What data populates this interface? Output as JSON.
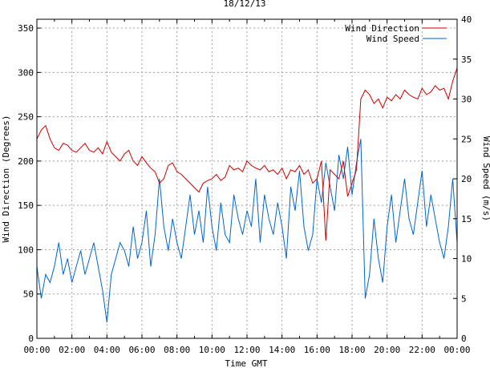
{
  "chart_data": {
    "type": "line",
    "title": "18/12/13",
    "xlabel": "Time GMT",
    "ylabel_left": "Wind Direction (Degrees)",
    "ylabel_right": "Wind Speed (m/s)",
    "grid": true,
    "legend_position": "top-right",
    "x_ticks": [
      "00:00",
      "02:00",
      "04:00",
      "06:00",
      "08:00",
      "10:00",
      "12:00",
      "14:00",
      "16:00",
      "18:00",
      "20:00",
      "22:00",
      "00:00"
    ],
    "xlim_hours": [
      0,
      24
    ],
    "y_left_ticks": [
      0,
      50,
      100,
      150,
      200,
      250,
      300,
      350
    ],
    "ylim_left": [
      0,
      360
    ],
    "y_right_ticks": [
      0,
      5,
      10,
      15,
      20,
      25,
      30,
      35,
      40
    ],
    "ylim_right": [
      0,
      40
    ],
    "series": [
      {
        "name": "Wind Direction",
        "axis": "left",
        "color": "#cc0000",
        "x": [
          0,
          0.25,
          0.5,
          0.75,
          1,
          1.25,
          1.5,
          1.75,
          2,
          2.25,
          2.5,
          2.75,
          3,
          3.25,
          3.5,
          3.75,
          4,
          4.25,
          4.5,
          4.75,
          5,
          5.25,
          5.5,
          5.75,
          6,
          6.25,
          6.5,
          6.75,
          7,
          7.25,
          7.5,
          7.75,
          8,
          8.25,
          8.5,
          8.75,
          9,
          9.25,
          9.5,
          9.75,
          10,
          10.25,
          10.5,
          10.75,
          11,
          11.25,
          11.5,
          11.75,
          12,
          12.25,
          12.5,
          12.75,
          13,
          13.25,
          13.5,
          13.75,
          14,
          14.25,
          14.5,
          14.75,
          15,
          15.25,
          15.5,
          15.75,
          16,
          16.25,
          16.5,
          16.75,
          17,
          17.25,
          17.5,
          17.75,
          18,
          18.25,
          18.5,
          18.75,
          19,
          19.25,
          19.5,
          19.75,
          20,
          20.25,
          20.5,
          20.75,
          21,
          21.25,
          21.5,
          21.75,
          22,
          22.25,
          22.5,
          22.75,
          23,
          23.25,
          23.5,
          23.75,
          24
        ],
        "values": [
          225,
          235,
          240,
          225,
          215,
          212,
          220,
          218,
          212,
          210,
          215,
          220,
          212,
          210,
          215,
          208,
          222,
          210,
          205,
          200,
          208,
          212,
          200,
          195,
          205,
          198,
          192,
          188,
          175,
          180,
          195,
          198,
          188,
          185,
          180,
          175,
          170,
          165,
          175,
          178,
          180,
          185,
          178,
          182,
          195,
          190,
          192,
          188,
          200,
          195,
          192,
          190,
          195,
          188,
          190,
          185,
          192,
          180,
          190,
          188,
          195,
          185,
          190,
          175,
          180,
          200,
          110,
          190,
          185,
          180,
          200,
          160,
          175,
          190,
          270,
          280,
          275,
          265,
          270,
          260,
          272,
          268,
          275,
          270,
          280,
          275,
          272,
          270,
          282,
          275,
          278,
          285,
          280,
          282,
          270,
          290,
          305
        ]
      },
      {
        "name": "Wind Speed",
        "axis": "right",
        "color": "#0066cc",
        "x": [
          0,
          0.25,
          0.5,
          0.75,
          1,
          1.25,
          1.5,
          1.75,
          2,
          2.25,
          2.5,
          2.75,
          3,
          3.25,
          3.5,
          3.75,
          4,
          4.25,
          4.5,
          4.75,
          5,
          5.25,
          5.5,
          5.75,
          6,
          6.25,
          6.5,
          6.75,
          7,
          7.25,
          7.5,
          7.75,
          8,
          8.25,
          8.5,
          8.75,
          9,
          9.25,
          9.5,
          9.75,
          10,
          10.25,
          10.5,
          10.75,
          11,
          11.25,
          11.5,
          11.75,
          12,
          12.25,
          12.5,
          12.75,
          13,
          13.25,
          13.5,
          13.75,
          14,
          14.25,
          14.5,
          14.75,
          15,
          15.25,
          15.5,
          15.75,
          16,
          16.25,
          16.5,
          16.75,
          17,
          17.25,
          17.5,
          17.75,
          18,
          18.25,
          18.5,
          18.75,
          19,
          19.25,
          19.5,
          19.75,
          20,
          20.25,
          20.5,
          20.75,
          21,
          21.25,
          21.5,
          21.75,
          22,
          22.25,
          22.5,
          22.75,
          23,
          23.25,
          23.5,
          23.75,
          24
        ],
        "values": [
          9,
          5,
          8,
          7,
          9,
          12,
          8,
          10,
          7,
          9,
          11,
          8,
          10,
          12,
          9,
          6,
          2,
          8,
          10,
          12,
          11,
          9,
          14,
          10,
          12,
          16,
          9,
          13,
          20,
          14,
          11,
          15,
          12,
          10,
          14,
          18,
          13,
          16,
          12,
          19,
          14,
          11,
          17,
          13,
          12,
          18,
          15,
          13,
          16,
          14,
          20,
          12,
          18,
          15,
          13,
          17,
          14,
          10,
          19,
          16,
          21,
          14,
          11,
          13,
          20,
          17,
          22,
          19,
          16,
          23,
          20,
          24,
          18,
          22,
          25,
          5,
          8,
          15,
          10,
          7,
          14,
          18,
          12,
          16,
          20,
          15,
          13,
          17,
          21,
          14,
          18,
          15,
          12,
          10,
          14,
          20,
          12
        ]
      }
    ]
  }
}
